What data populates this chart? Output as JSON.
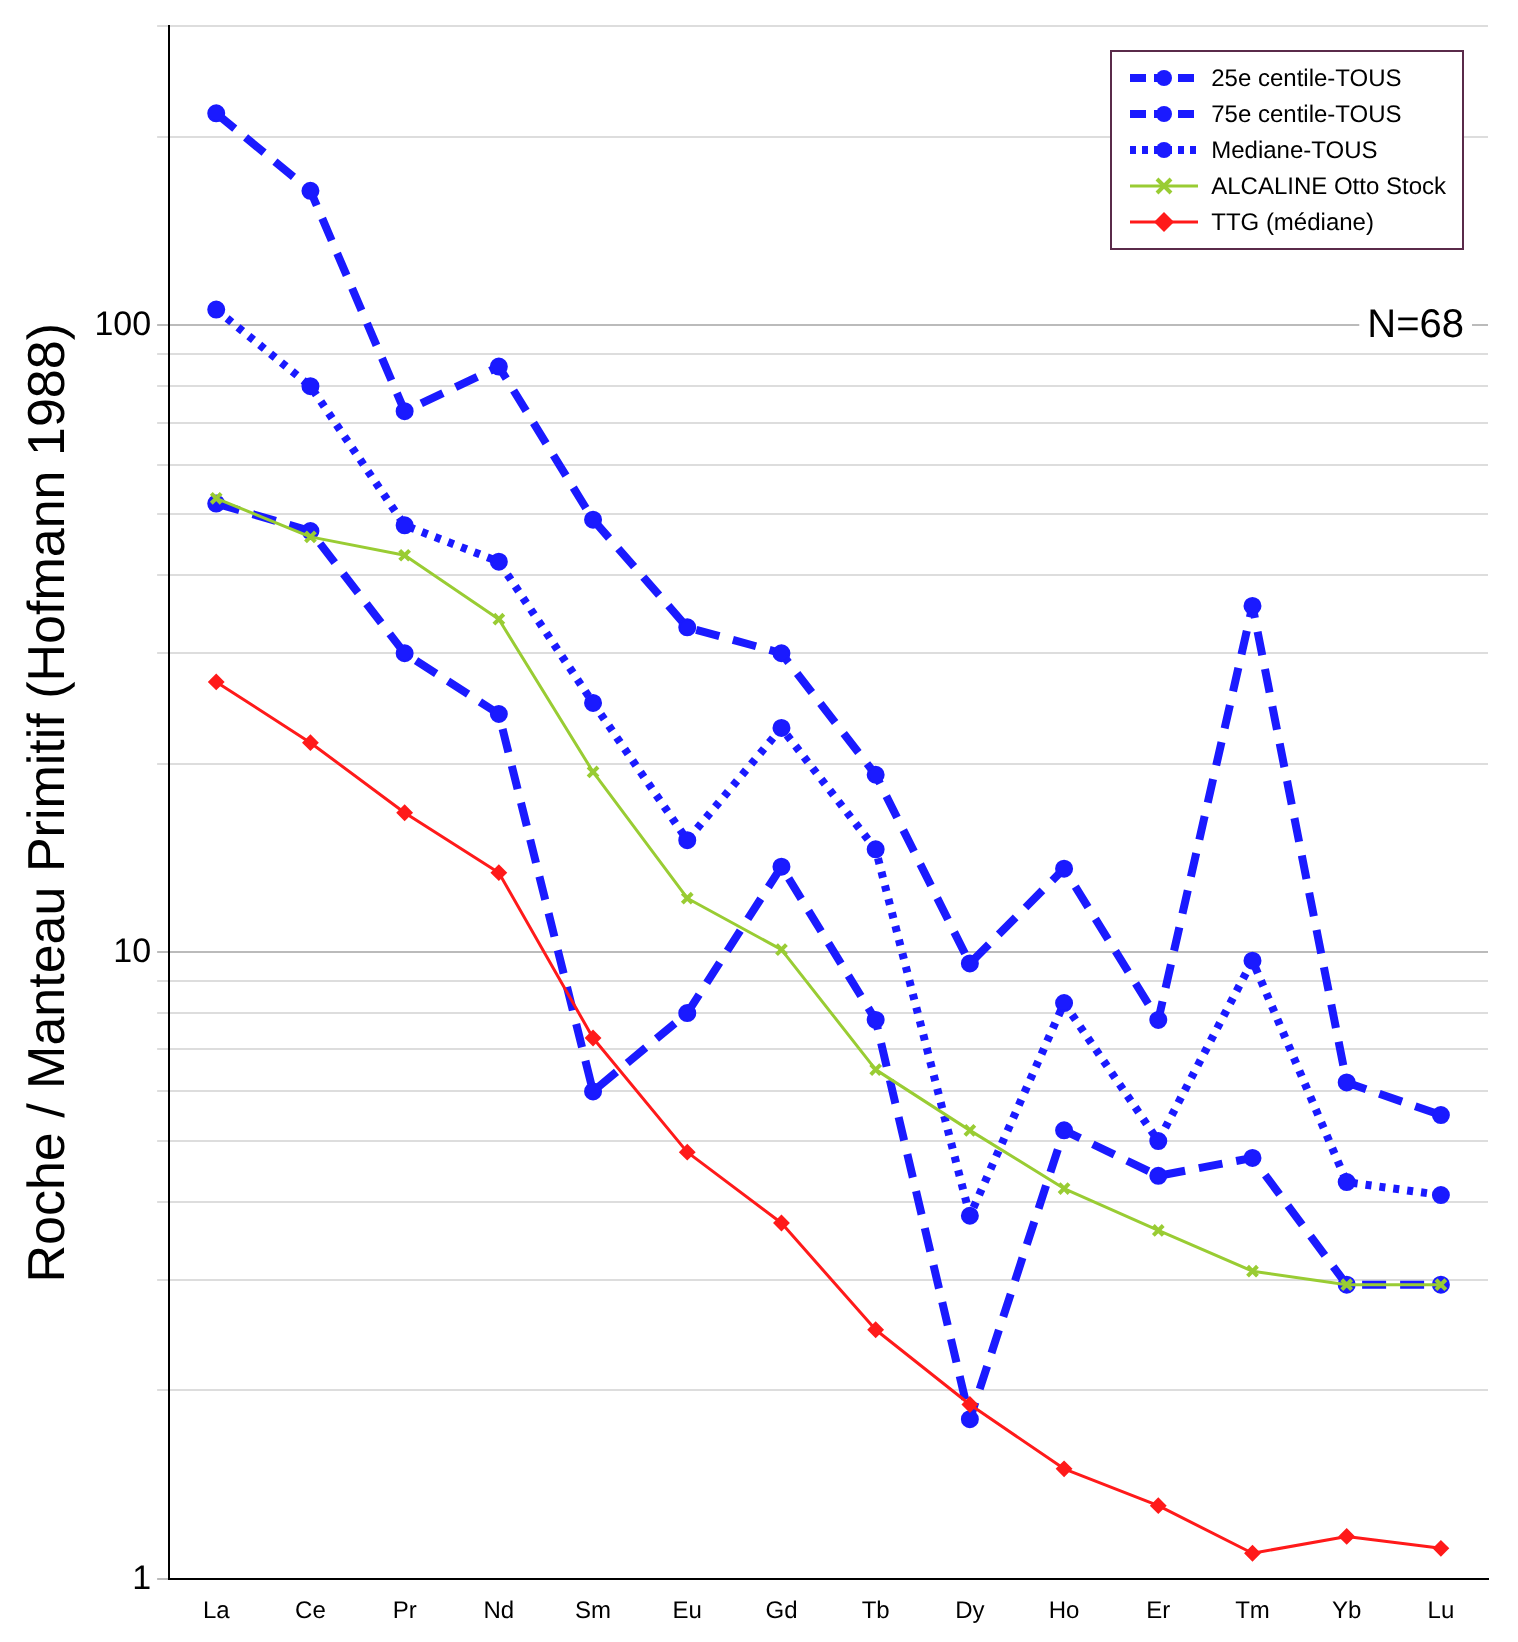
{
  "chart_data": {
    "type": "line",
    "ylabel": "Roche / Manteau Primitif (Hofmann 1988)",
    "categories": [
      "La",
      "Ce",
      "Pr",
      "Nd",
      "Sm",
      "Eu",
      "Gd",
      "Tb",
      "Dy",
      "Ho",
      "Er",
      "Tm",
      "Yb",
      "Lu"
    ],
    "series": [
      {
        "name": "25e centile-TOUS",
        "color": "#1a1aff",
        "marker": "circle",
        "line_style": "dashed",
        "values": [
          52,
          47,
          30,
          24,
          6.0,
          8.0,
          13.7,
          7.8,
          1.8,
          5.2,
          4.4,
          4.7,
          2.95,
          2.95
        ]
      },
      {
        "name": "75e centile-TOUS",
        "color": "#1a1aff",
        "marker": "circle",
        "line_style": "dashed",
        "values": [
          218,
          164,
          73,
          86,
          49,
          33,
          30,
          19.2,
          9.6,
          13.6,
          7.8,
          35.7,
          6.2,
          5.5
        ]
      },
      {
        "name": "Mediane-TOUS",
        "color": "#1a1aff",
        "marker": "circle",
        "line_style": "dotted",
        "values": [
          106,
          80,
          48,
          42,
          25,
          15.1,
          22.8,
          14.6,
          3.8,
          8.3,
          5.0,
          9.7,
          4.3,
          4.1
        ]
      },
      {
        "name": "ALCALINE Otto Stock",
        "color": "#99cc33",
        "marker": "cross",
        "line_style": "solid",
        "values": [
          53,
          46,
          43,
          34,
          19.4,
          12.2,
          10.1,
          6.5,
          5.2,
          4.2,
          3.6,
          3.1,
          2.95,
          2.95
        ]
      },
      {
        "name": "TTG (médiane)",
        "color": "#ff1a1a",
        "marker": "diamond",
        "line_style": "solid",
        "values": [
          27,
          21.6,
          16.7,
          13.4,
          7.3,
          4.8,
          3.7,
          2.5,
          1.9,
          1.5,
          1.31,
          1.1,
          1.17,
          1.12
        ]
      }
    ],
    "log": "y",
    "ylim": [
      1,
      300
    ],
    "yticks": [
      1,
      {
        "value": 2,
        "label": null
      },
      {
        "value": 3,
        "label": null
      },
      {
        "value": 4,
        "label": null
      },
      {
        "value": 5,
        "label": null
      },
      {
        "value": 6,
        "label": null
      },
      {
        "value": 7,
        "label": null
      },
      {
        "value": 8,
        "label": null
      },
      {
        "value": 9,
        "label": null
      },
      10,
      {
        "value": 20,
        "label": null
      },
      {
        "value": 30,
        "label": null
      },
      {
        "value": 40,
        "label": null
      },
      {
        "value": 50,
        "label": null
      },
      {
        "value": 60,
        "label": null
      },
      {
        "value": 70,
        "label": null
      },
      {
        "value": 80,
        "label": null
      },
      {
        "value": 90,
        "label": null
      },
      100,
      {
        "value": 200,
        "label": null
      },
      {
        "value": 300,
        "label": null
      }
    ],
    "grid": "y",
    "legend": "top right",
    "annotations": [
      "N=68"
    ]
  }
}
